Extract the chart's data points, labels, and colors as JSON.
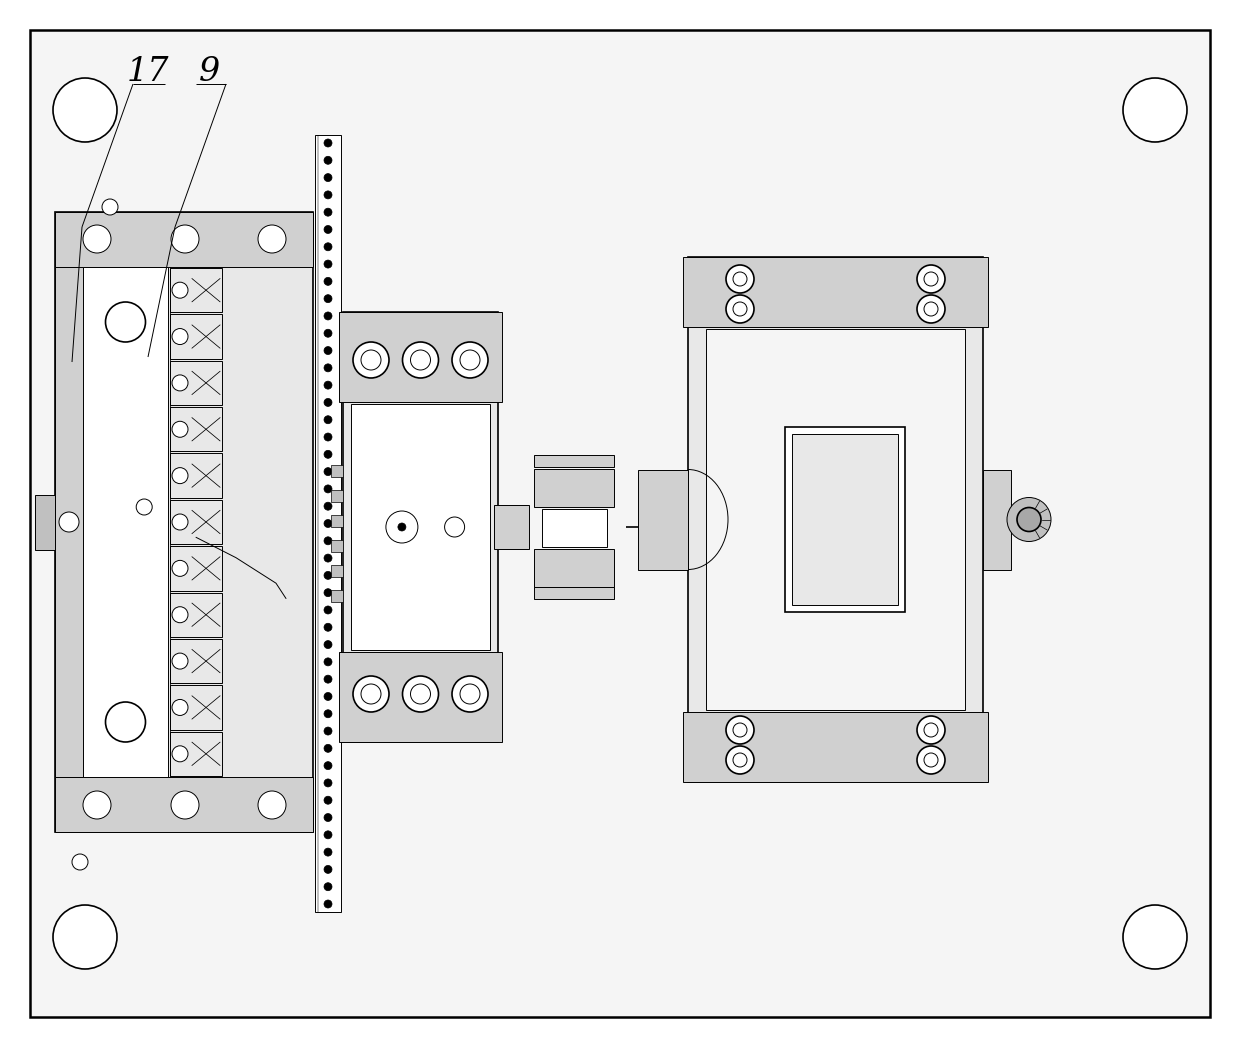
{
  "bg_color": "#ffffff",
  "line_color": "#000000",
  "gray1": "#e8e8e8",
  "gray2": "#d0d0d0",
  "gray3": "#c0c0c0",
  "gray4": "#a8a8a8",
  "gray5": "#f5f5f5",
  "lw_main": 1.2,
  "lw_thin": 0.7,
  "lw_thick": 1.8,
  "fig_w": 12.4,
  "fig_h": 10.47,
  "label_17": "17",
  "label_9": "9"
}
